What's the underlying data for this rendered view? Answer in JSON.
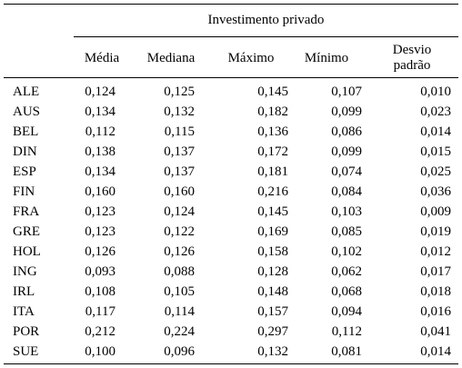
{
  "table": {
    "group_title": "Investimento privado",
    "columns": [
      "Média",
      "Mediana",
      "Máximo",
      "Mínimo",
      "Desvio padrão"
    ],
    "column_header_lines": {
      "media": "Média",
      "mediana": "Mediana",
      "maximo": "Máximo",
      "minimo": "Mínimo",
      "desvio_line1": "Desvio",
      "desvio_line2": "padrão"
    },
    "rows": [
      {
        "country": "ALE",
        "media": "0,124",
        "mediana": "0,125",
        "maximo": "0,145",
        "minimo": "0,107",
        "desvio": "0,010"
      },
      {
        "country": "AUS",
        "media": "0,134",
        "mediana": "0,132",
        "maximo": "0,182",
        "minimo": "0,099",
        "desvio": "0,023"
      },
      {
        "country": "BEL",
        "media": "0,112",
        "mediana": "0,115",
        "maximo": "0,136",
        "minimo": "0,086",
        "desvio": "0,014"
      },
      {
        "country": "DIN",
        "media": "0,138",
        "mediana": "0,137",
        "maximo": "0,172",
        "minimo": "0,099",
        "desvio": "0,015"
      },
      {
        "country": "ESP",
        "media": "0,134",
        "mediana": "0,137",
        "maximo": "0,181",
        "minimo": "0,074",
        "desvio": "0,025"
      },
      {
        "country": "FIN",
        "media": "0,160",
        "mediana": "0,160",
        "maximo": "0,216",
        "minimo": "0,084",
        "desvio": "0,036"
      },
      {
        "country": "FRA",
        "media": "0,123",
        "mediana": "0,124",
        "maximo": "0,145",
        "minimo": "0,103",
        "desvio": "0,009"
      },
      {
        "country": "GRE",
        "media": "0,123",
        "mediana": "0,122",
        "maximo": "0,169",
        "minimo": "0,085",
        "desvio": "0,019"
      },
      {
        "country": "HOL",
        "media": "0,126",
        "mediana": "0,126",
        "maximo": "0,158",
        "minimo": "0,102",
        "desvio": "0,012"
      },
      {
        "country": "ING",
        "media": "0,093",
        "mediana": "0,088",
        "maximo": "0,128",
        "minimo": "0,062",
        "desvio": "0,017"
      },
      {
        "country": "IRL",
        "media": "0,108",
        "mediana": "0,105",
        "maximo": "0,148",
        "minimo": "0,068",
        "desvio": "0,018"
      },
      {
        "country": "ITA",
        "media": "0,117",
        "mediana": "0,114",
        "maximo": "0,157",
        "minimo": "0,094",
        "desvio": "0,016"
      },
      {
        "country": "POR",
        "media": "0,212",
        "mediana": "0,224",
        "maximo": "0,297",
        "minimo": "0,112",
        "desvio": "0,041"
      },
      {
        "country": "SUE",
        "media": "0,100",
        "mediana": "0,096",
        "maximo": "0,132",
        "minimo": "0,081",
        "desvio": "0,014"
      }
    ]
  }
}
